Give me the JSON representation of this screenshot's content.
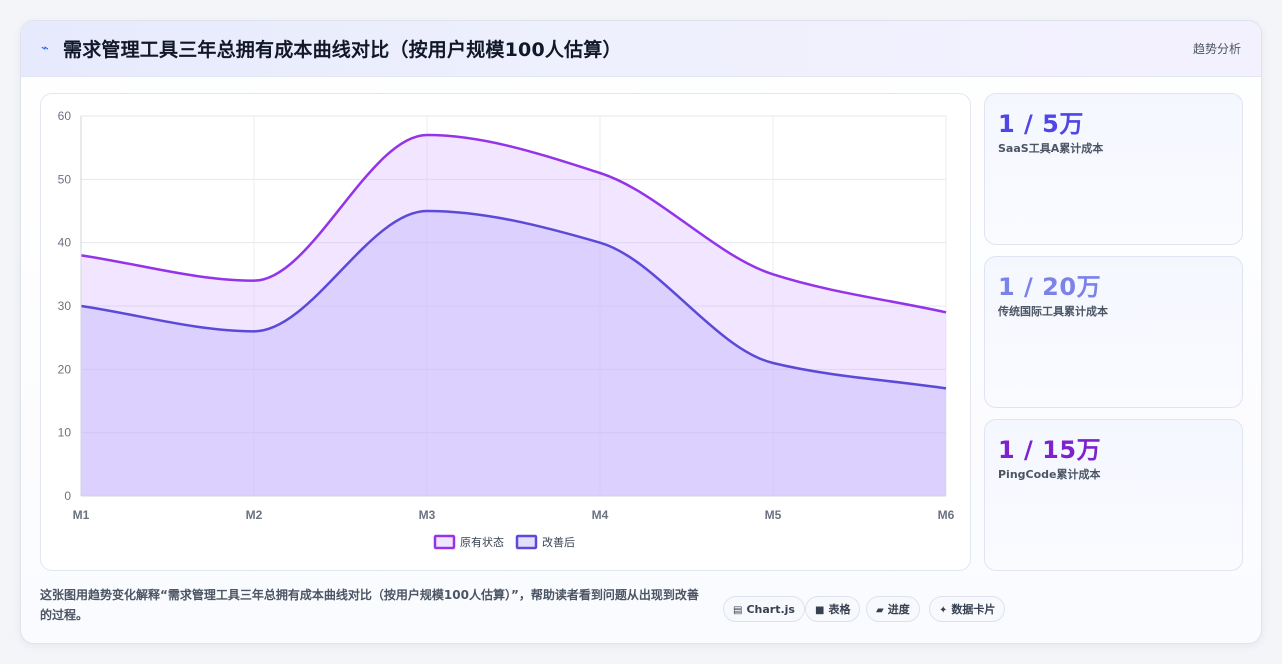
{
  "header": {
    "icon": "trend-line-icon",
    "title": "需求管理工具三年总拥有成本曲线对比（按用户规模100人估算）",
    "tag": "趋势分析"
  },
  "chart_data": {
    "type": "area",
    "categories": [
      "M1",
      "M2",
      "M3",
      "M4",
      "M5",
      "M6"
    ],
    "series": [
      {
        "name": "原有状态",
        "values": [
          38,
          34,
          57,
          51,
          35,
          29
        ],
        "color": "#9333ea",
        "fill": "rgba(216,180,254,0.35)"
      },
      {
        "name": "改善后",
        "values": [
          30,
          26,
          45,
          40,
          21,
          17
        ],
        "color": "#5b4ad8",
        "fill": "rgba(196,181,253,0.45)"
      }
    ],
    "ylim": [
      0,
      60
    ],
    "yticks": [
      0,
      10,
      20,
      30,
      40,
      50,
      60
    ],
    "grid": true,
    "legend": "bottom-center"
  },
  "stats": [
    {
      "value": "1 / 5万",
      "label": "SaaS工具A累计成本",
      "color": "#4f46e5"
    },
    {
      "value": "1 / 20万",
      "label": "传统国际工具累计成本",
      "color": "#7c83e8"
    },
    {
      "value": "1 / 15万",
      "label": "PingCode累计成本",
      "color": "#7e22ce"
    }
  ],
  "footer": {
    "description": "这张图用趋势变化解释“需求管理工具三年总拥有成本曲线对比（按用户规模100人估算）”，帮助读者看到问题从出现到改善的过程。",
    "chips": [
      {
        "icon": "chart-icon",
        "glyph": "▤",
        "label": "Chart.js"
      },
      {
        "icon": "table-icon",
        "glyph": "■",
        "label": "表格"
      },
      {
        "icon": "progress-icon",
        "glyph": "▰",
        "label": "进度"
      },
      {
        "icon": "sparkle-icon",
        "glyph": "✦",
        "label": "数据卡片"
      }
    ]
  }
}
